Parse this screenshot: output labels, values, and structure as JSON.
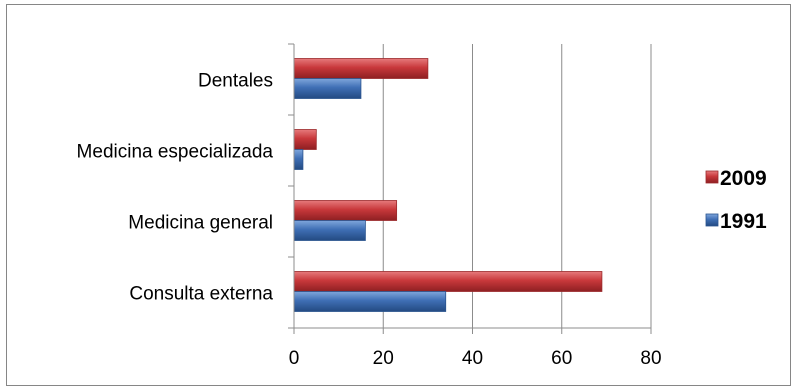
{
  "chart_data": {
    "type": "bar",
    "orientation": "horizontal",
    "title": "",
    "xlabel": "",
    "ylabel": "",
    "categories": [
      "Consulta externa",
      "Medicina general",
      "Medicina especializada",
      "Dentales"
    ],
    "series": [
      {
        "name": "1991",
        "color": "#3f6fb5",
        "values": [
          34,
          16,
          2,
          15
        ]
      },
      {
        "name": "2009",
        "color": "#c8383b",
        "values": [
          69,
          23,
          5,
          30
        ]
      }
    ],
    "xlim": [
      0,
      80
    ],
    "x_ticks": [
      "0",
      "20",
      "40",
      "60",
      "80"
    ],
    "grid": "vertical gridlines",
    "legend_position": "right",
    "legend_order": [
      "2009",
      "1991"
    ]
  }
}
